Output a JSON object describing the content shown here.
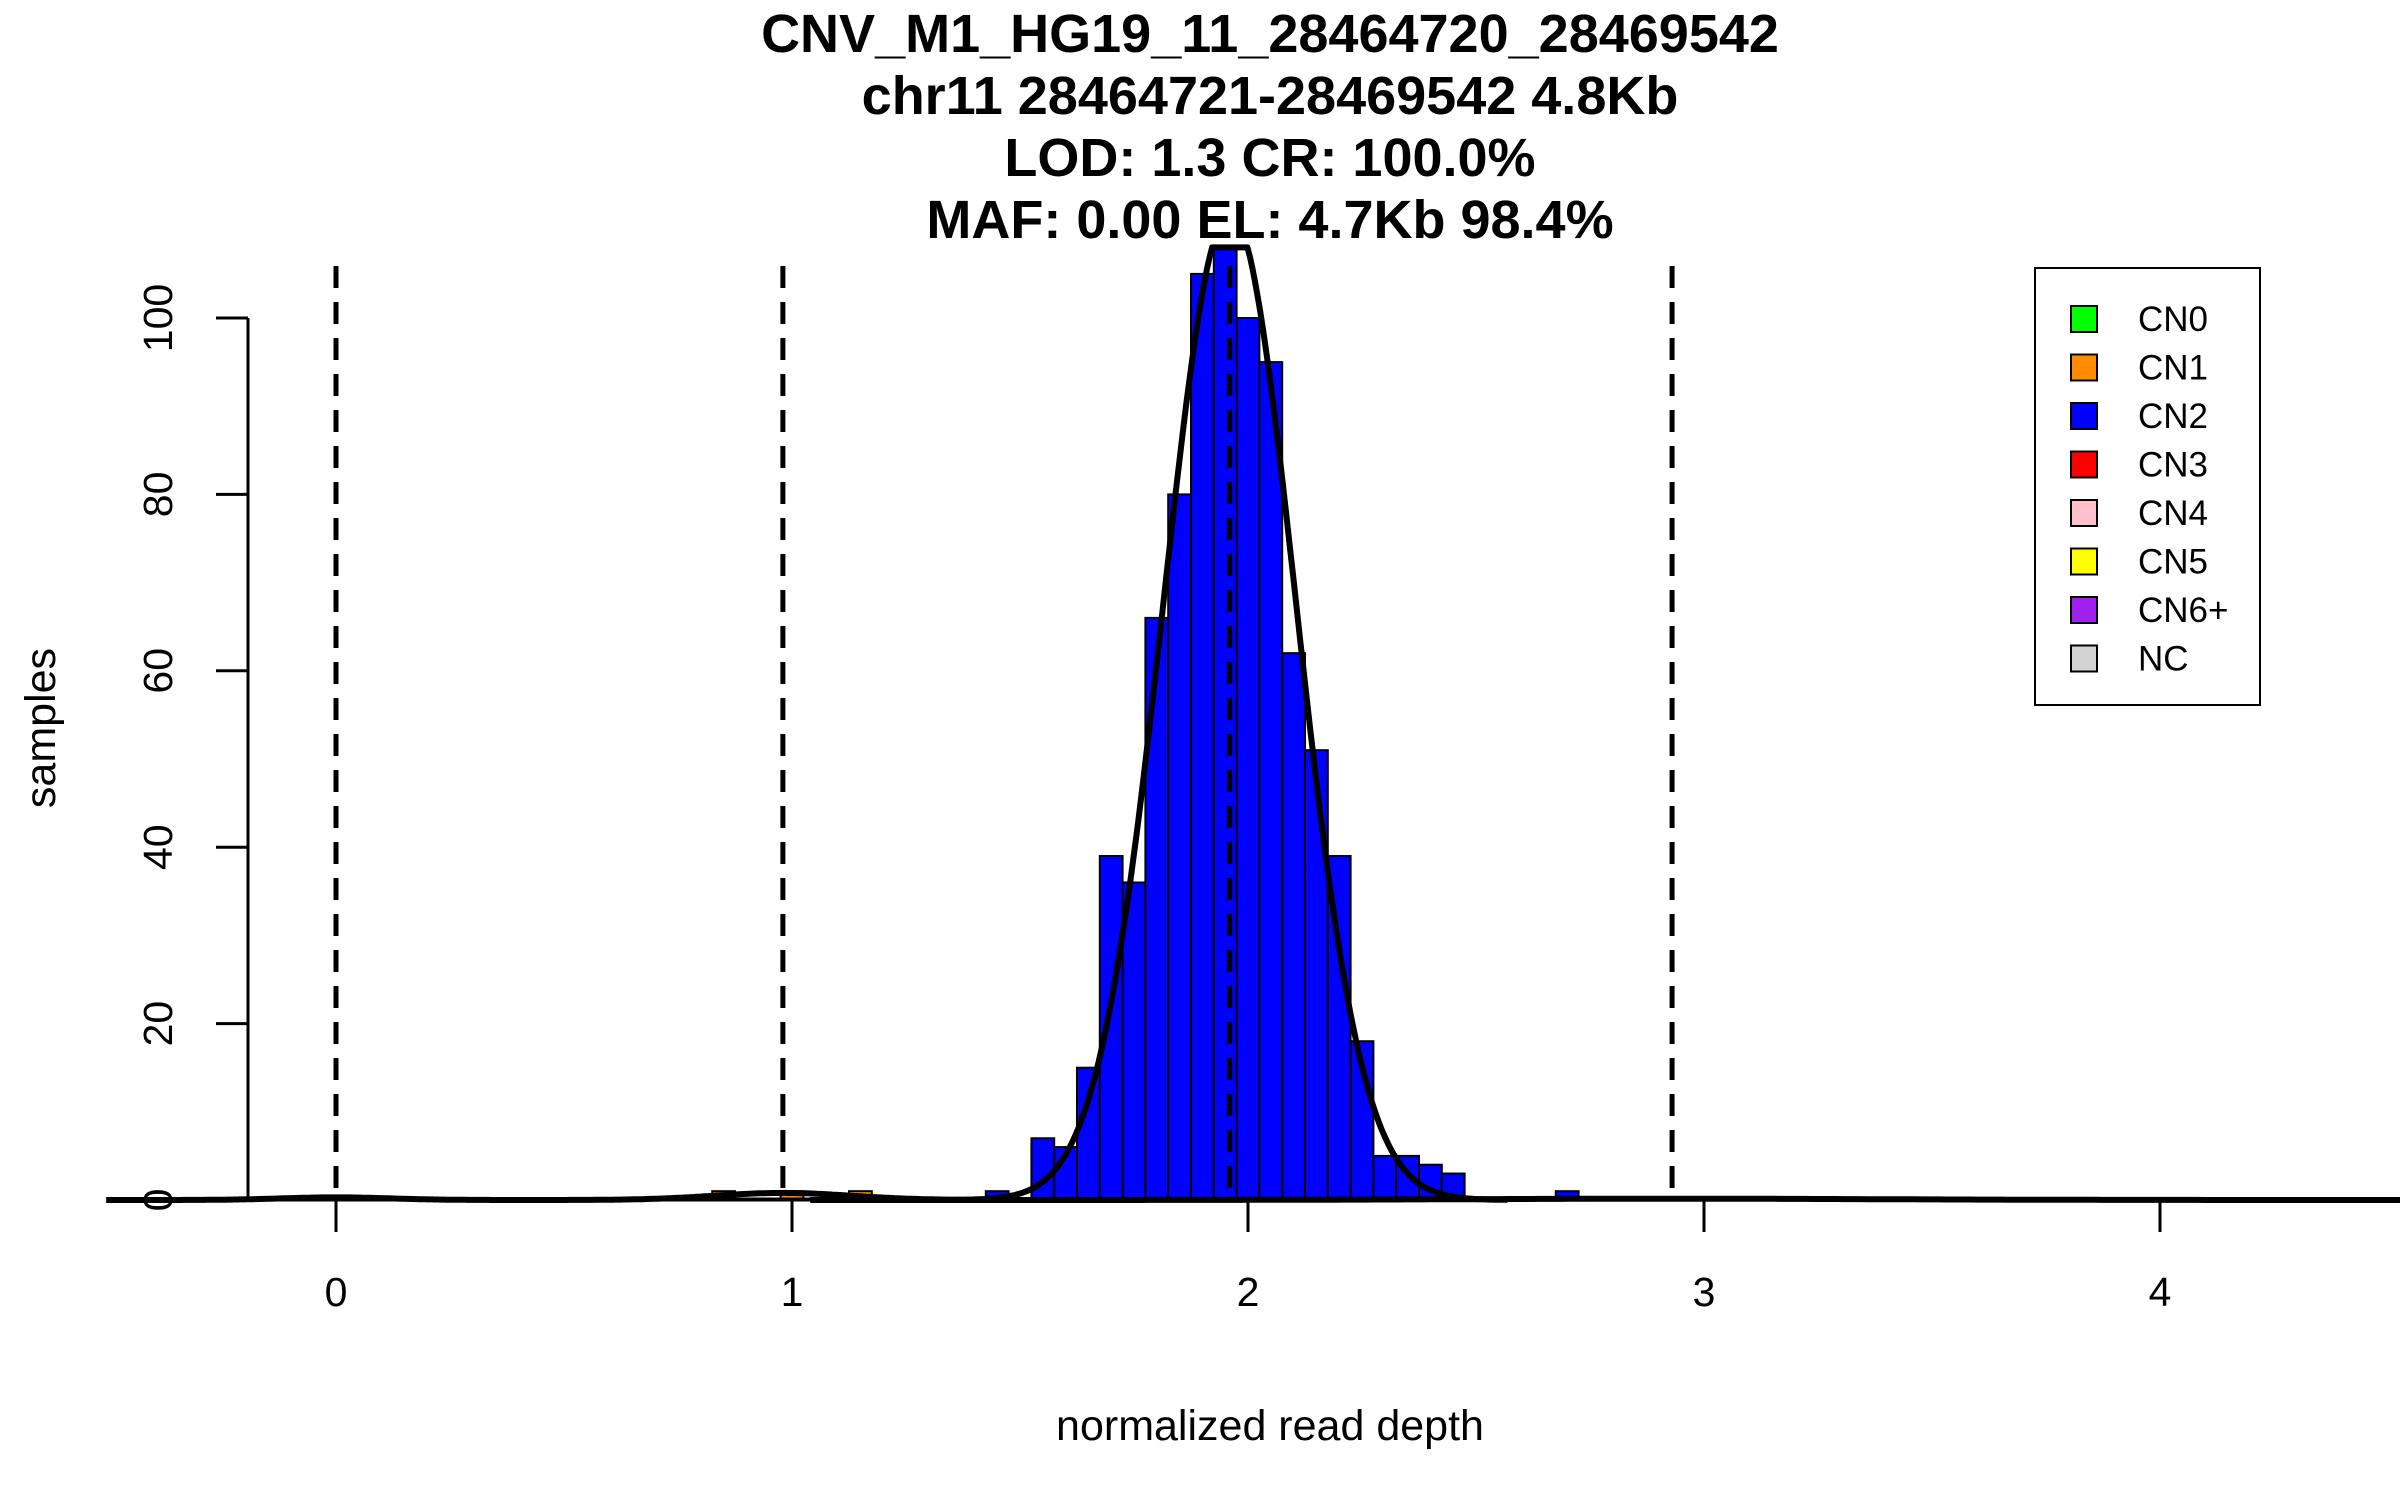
{
  "chart_data": {
    "type": "bar",
    "title_lines": [
      "CNV_M1_HG19_11_28464720_28469542",
      "chr11 28464721-28469542 4.8Kb",
      "LOD: 1.3 CR: 100.0%",
      "MAF: 0.00 EL: 4.7Kb 98.4%"
    ],
    "xlabel": "normalized read depth",
    "ylabel": "samples",
    "xlim": [
      -0.2,
      4.1
    ],
    "ylim": [
      0,
      108
    ],
    "x_ticks": [
      0,
      1,
      2,
      3,
      4
    ],
    "y_ticks": [
      0,
      20,
      40,
      60,
      80,
      100
    ],
    "bin_width": 0.05,
    "series": [
      {
        "name": "CN1",
        "color": "#FF8C00",
        "bins": [
          {
            "x0": 0.825,
            "count": 1
          },
          {
            "x0": 0.975,
            "count": 1
          },
          {
            "x0": 1.125,
            "count": 1
          }
        ]
      },
      {
        "name": "CN2",
        "color": "#0000FF",
        "bins": [
          {
            "x0": 1.425,
            "count": 1
          },
          {
            "x0": 1.525,
            "count": 7
          },
          {
            "x0": 1.575,
            "count": 6
          },
          {
            "x0": 1.625,
            "count": 15
          },
          {
            "x0": 1.675,
            "count": 39
          },
          {
            "x0": 1.725,
            "count": 36
          },
          {
            "x0": 1.775,
            "count": 66
          },
          {
            "x0": 1.825,
            "count": 80
          },
          {
            "x0": 1.875,
            "count": 105
          },
          {
            "x0": 1.925,
            "count": 108
          },
          {
            "x0": 1.975,
            "count": 100
          },
          {
            "x0": 2.025,
            "count": 95
          },
          {
            "x0": 2.075,
            "count": 62
          },
          {
            "x0": 2.125,
            "count": 51
          },
          {
            "x0": 2.175,
            "count": 39
          },
          {
            "x0": 2.225,
            "count": 18
          },
          {
            "x0": 2.275,
            "count": 5
          },
          {
            "x0": 2.325,
            "count": 5
          },
          {
            "x0": 2.375,
            "count": 4
          },
          {
            "x0": 2.425,
            "count": 3
          },
          {
            "x0": 2.675,
            "count": 1
          }
        ]
      }
    ],
    "fit_curves": [
      {
        "label": "CN0 fit",
        "mean": 0.0,
        "sd": 0.12,
        "peak": 0.3
      },
      {
        "label": "CN1 fit",
        "mean": 0.98,
        "sd": 0.15,
        "peak": 0.8
      },
      {
        "label": "CN2 fit",
        "mean": 1.96,
        "sd": 0.145,
        "peak": 112
      },
      {
        "label": "CN3 fit",
        "mean": 2.93,
        "sd": 0.45,
        "peak": 0.15
      }
    ],
    "cutoff_lines": [
      0.0,
      0.98,
      1.96,
      2.93
    ],
    "legend": {
      "position": "top-right",
      "entries": [
        {
          "label": "CN0",
          "color": "#00FF00"
        },
        {
          "label": "CN1",
          "color": "#FF8C00"
        },
        {
          "label": "CN2",
          "color": "#0000FF"
        },
        {
          "label": "CN3",
          "color": "#FF0000"
        },
        {
          "label": "CN4",
          "color": "#FFC0CB"
        },
        {
          "label": "CN5",
          "color": "#FFFF00"
        },
        {
          "label": "CN6+",
          "color": "#A020F0"
        },
        {
          "label": "NC",
          "color": "#D3D3D3"
        }
      ]
    }
  }
}
